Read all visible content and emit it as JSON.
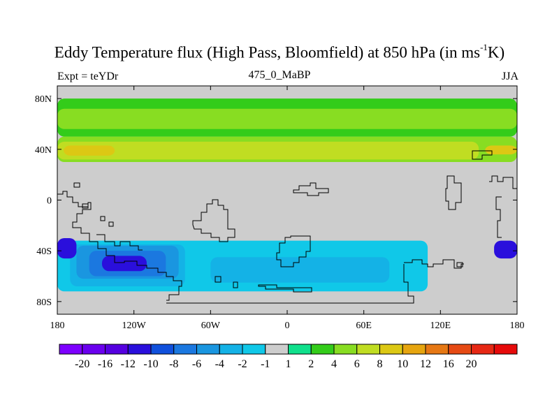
{
  "title": {
    "prefix": "Eddy Temperature flux (High Pass, Bloomfield) at 850 hPa (in ms",
    "superscript": "-1",
    "suffix": "K)"
  },
  "subtitle_left": "Expt = teYDr",
  "subtitle_center": "475_0_MaBP",
  "subtitle_right": "JJA",
  "chart_data": {
    "type": "heatmap",
    "title": "Eddy Temperature flux (High Pass, Bloomfield) at 850 hPa (in ms-1K)",
    "subtitle_left": "Expt = teYDr",
    "subtitle_center": "475_0_MaBP",
    "subtitle_right": "JJA",
    "xlim": [
      -180,
      180
    ],
    "ylim": [
      -90,
      90
    ],
    "x_ticks": [
      {
        "value": -180,
        "label": "180"
      },
      {
        "value": -120,
        "label": "120W"
      },
      {
        "value": -60,
        "label": "60W"
      },
      {
        "value": 0,
        "label": "0"
      },
      {
        "value": 60,
        "label": "60E"
      },
      {
        "value": 120,
        "label": "120E"
      },
      {
        "value": 180,
        "label": "180"
      }
    ],
    "y_ticks": [
      {
        "value": 80,
        "label": "80N"
      },
      {
        "value": 40,
        "label": "40N"
      },
      {
        "value": 0,
        "label": "0"
      },
      {
        "value": -40,
        "label": "40S"
      },
      {
        "value": -80,
        "label": "80S"
      }
    ],
    "colorbar": {
      "colors": [
        "#7d00ff",
        "#6a00ee",
        "#5500e0",
        "#2a0fdc",
        "#1050dc",
        "#1b78e0",
        "#1a96e0",
        "#14b2e6",
        "#10c8e8",
        "#cdcdcd",
        "#10e08c",
        "#33cc1a",
        "#88dd22",
        "#c0dd22",
        "#dcc814",
        "#e6a50f",
        "#e67814",
        "#e64a14",
        "#e62814",
        "#e60a0a"
      ],
      "labels": [
        "-20",
        "-16",
        "-12",
        "-10",
        "-8",
        "-6",
        "-4",
        "-2",
        "-1",
        "1",
        "2",
        "4",
        "6",
        "8",
        "10",
        "12",
        "16",
        "20"
      ]
    },
    "regions": [
      {
        "lat": [
          50,
          80
        ],
        "lon": [
          -180,
          180
        ],
        "value": 2
      },
      {
        "lat": [
          56,
          72
        ],
        "lon": [
          -180,
          180
        ],
        "value": 4
      },
      {
        "lat": [
          30,
          50
        ],
        "lon": [
          -180,
          180
        ],
        "value": 4
      },
      {
        "lat": [
          32,
          46
        ],
        "lon": [
          -180,
          150
        ],
        "value": 6
      },
      {
        "lat": [
          35,
          43
        ],
        "lon": [
          -175,
          -135
        ],
        "value": 8
      },
      {
        "lat": [
          36,
          43
        ],
        "lon": [
          155,
          180
        ],
        "value": 8
      },
      {
        "lat": [
          -30,
          -80
        ],
        "lon": [
          -180,
          180
        ],
        "value": -1
      },
      {
        "lat": [
          -32,
          -72
        ],
        "lon": [
          -180,
          110
        ],
        "value": -2
      },
      {
        "lat": [
          -35,
          -68
        ],
        "lon": [
          -170,
          -80
        ],
        "value": -4
      },
      {
        "lat": [
          -45,
          -65
        ],
        "lon": [
          -60,
          80
        ],
        "value": -4
      },
      {
        "lat": [
          -36,
          -62
        ],
        "lon": [
          -165,
          -85
        ],
        "value": -6
      },
      {
        "lat": [
          -40,
          -60
        ],
        "lon": [
          -155,
          -95
        ],
        "value": -8
      },
      {
        "lat": [
          -44,
          -56
        ],
        "lon": [
          -145,
          -110
        ],
        "value": -12
      },
      {
        "lat": [
          -30,
          -46
        ],
        "lon": [
          -180,
          -165
        ],
        "value": -12
      },
      {
        "lat": [
          -32,
          -46
        ],
        "lon": [
          162,
          180
        ],
        "value": -12
      }
    ]
  }
}
